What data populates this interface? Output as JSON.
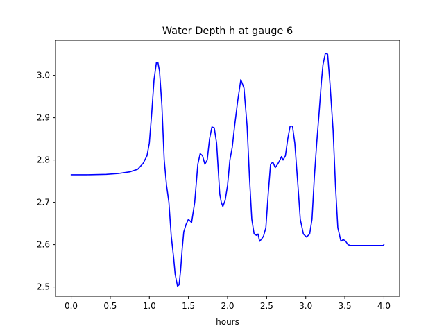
{
  "chart_data": {
    "type": "line",
    "title": "Water Depth h at gauge 6",
    "xlabel": "hours",
    "ylabel": "",
    "xlim": [
      -0.2,
      4.2
    ],
    "ylim": [
      2.478,
      3.083
    ],
    "xticks": [
      0.0,
      0.5,
      1.0,
      1.5,
      2.0,
      2.5,
      3.0,
      3.5,
      4.0
    ],
    "xtick_labels": [
      "0.0",
      "0.5",
      "1.0",
      "1.5",
      "2.0",
      "2.5",
      "3.0",
      "3.5",
      "4.0"
    ],
    "yticks": [
      2.5,
      2.6,
      2.7,
      2.8,
      2.9,
      3.0
    ],
    "ytick_labels": [
      "2.5",
      "2.6",
      "2.7",
      "2.8",
      "2.9",
      "3.0"
    ],
    "grid": false,
    "legend": "none",
    "series": [
      {
        "color": "#0000ff",
        "x": [
          0.0,
          0.2,
          0.45,
          0.6,
          0.75,
          0.85,
          0.92,
          0.97,
          1.0,
          1.03,
          1.06,
          1.09,
          1.11,
          1.13,
          1.16,
          1.19,
          1.22,
          1.25,
          1.28,
          1.31,
          1.33,
          1.36,
          1.38,
          1.4,
          1.42,
          1.44,
          1.47,
          1.5,
          1.54,
          1.58,
          1.62,
          1.65,
          1.68,
          1.71,
          1.74,
          1.77,
          1.8,
          1.83,
          1.86,
          1.88,
          1.9,
          1.92,
          1.94,
          1.97,
          2.0,
          2.03,
          2.06,
          2.09,
          2.13,
          2.17,
          2.21,
          2.25,
          2.28,
          2.31,
          2.34,
          2.37,
          2.39,
          2.41,
          2.43,
          2.46,
          2.49,
          2.52,
          2.55,
          2.58,
          2.61,
          2.64,
          2.67,
          2.69,
          2.71,
          2.74,
          2.77,
          2.8,
          2.83,
          2.86,
          2.9,
          2.93,
          2.97,
          3.01,
          3.05,
          3.08,
          3.11,
          3.14,
          3.17,
          3.2,
          3.22,
          3.25,
          3.28,
          3.31,
          3.35,
          3.38,
          3.41,
          3.45,
          3.48,
          3.51,
          3.54,
          3.57,
          3.6,
          3.63,
          3.66,
          3.69,
          3.72,
          3.74,
          3.76,
          3.79,
          3.82,
          3.85,
          3.88,
          3.91,
          3.94,
          3.97,
          3.99,
          4.0
        ],
        "y": [
          2.765,
          2.765,
          2.766,
          2.768,
          2.772,
          2.778,
          2.792,
          2.81,
          2.84,
          2.91,
          2.99,
          3.03,
          3.03,
          3.01,
          2.93,
          2.8,
          2.74,
          2.7,
          2.62,
          2.57,
          2.53,
          2.502,
          2.505,
          2.54,
          2.59,
          2.63,
          2.648,
          2.66,
          2.652,
          2.7,
          2.79,
          2.815,
          2.81,
          2.79,
          2.8,
          2.85,
          2.878,
          2.876,
          2.84,
          2.78,
          2.72,
          2.7,
          2.69,
          2.705,
          2.74,
          2.8,
          2.83,
          2.88,
          2.94,
          2.99,
          2.97,
          2.88,
          2.76,
          2.66,
          2.625,
          2.622,
          2.625,
          2.608,
          2.612,
          2.62,
          2.64,
          2.72,
          2.79,
          2.795,
          2.782,
          2.79,
          2.8,
          2.808,
          2.8,
          2.81,
          2.85,
          2.88,
          2.88,
          2.84,
          2.74,
          2.66,
          2.625,
          2.618,
          2.625,
          2.66,
          2.76,
          2.84,
          2.91,
          2.985,
          3.025,
          3.052,
          3.05,
          2.98,
          2.87,
          2.74,
          2.64,
          2.608,
          2.612,
          2.608,
          2.6,
          2.598,
          2.598,
          2.598,
          2.598,
          2.598,
          2.598,
          2.598,
          2.598,
          2.598,
          2.598,
          2.598,
          2.598,
          2.598,
          2.598,
          2.598,
          2.598,
          2.6
        ]
      }
    ]
  }
}
